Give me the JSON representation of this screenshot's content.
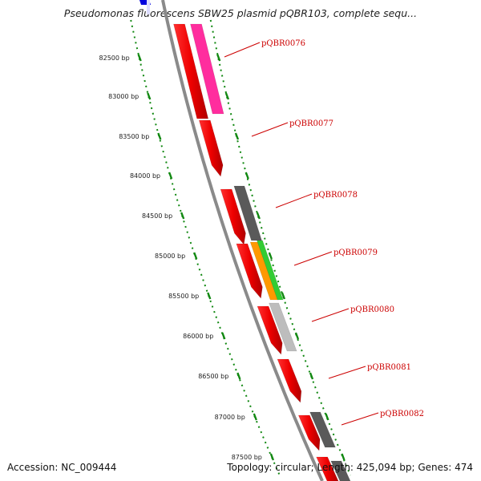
{
  "title": "Pseudomonas fluorescens SBW25 plasmid pQBR103, complete sequ...",
  "footer": {
    "accession": "Accession: NC_009444",
    "summary": "Topology: circular; Length: 425,094 bp; Genes: 474"
  },
  "ruler": {
    "ticks": [
      "82500 bp",
      "83000 bp",
      "83500 bp",
      "84000 bp",
      "84500 bp",
      "85000 bp",
      "85500 bp",
      "86000 bp",
      "86500 bp",
      "87000 bp",
      "87500 bp"
    ]
  },
  "gene_labels": [
    "pQBR0076",
    "pQBR0077",
    "pQBR0078",
    "pQBR0079",
    "pQBR0080",
    "pQBR0081",
    "pQBR0082"
  ],
  "colors": {
    "forward_cds": "#ff0000",
    "reverse_hit_magenta": "#ff2d9e",
    "reverse_hit_dark": "#5a5a5a",
    "reverse_hit_orange": "#ff9900",
    "reverse_hit_green": "#33cc33",
    "reverse_hit_light": "#bdbdbd",
    "backbone": "#8a8a8a",
    "ruler_dots": "#118811",
    "label": "#cc0000",
    "top_blue": "#0000dd"
  }
}
